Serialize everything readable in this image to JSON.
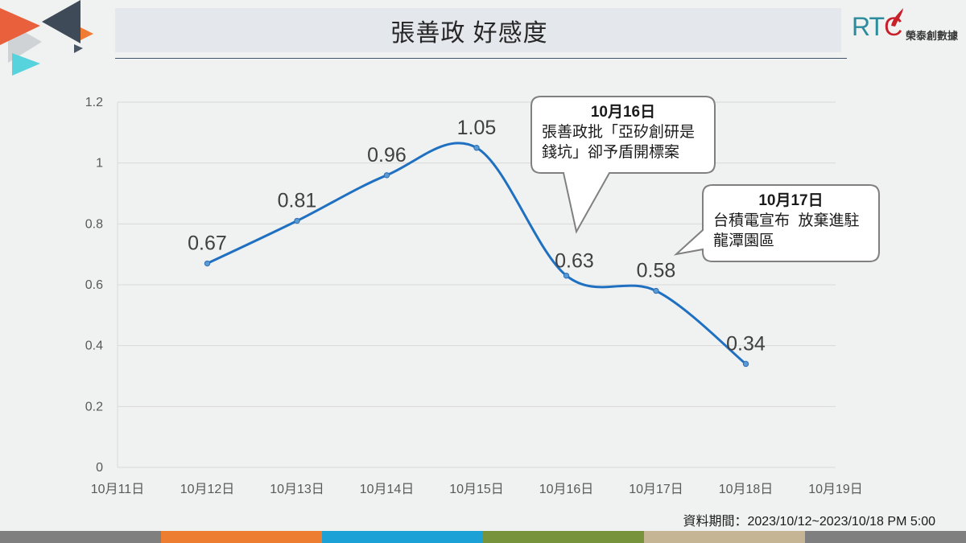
{
  "slide": {
    "footer_note": "資料期間：2023/10/12~2023/10/18 PM 5:00"
  },
  "logo": {
    "mark": "RTC",
    "company": "榮泰創數據"
  },
  "colors": {
    "background": "#f0f1f1",
    "title_bar": "#e4e7ec",
    "title_rule": "#44546a",
    "series_line": "#1f70c1",
    "marker": "#5b9bd5",
    "gridline": "#d9d9d9",
    "callout_border": "#808080",
    "logo_letters": [
      "#2a8c9c",
      "#2a8c9c",
      "#c8202b"
    ],
    "logo_flame": "#c8202b",
    "footer_bar": [
      "#7f7f7f",
      "#ed7d31",
      "#1ba1d6",
      "#77933c",
      "#c5b594",
      "#7f7f7f"
    ],
    "decor": [
      "#d0d3d6",
      "#e8613c",
      "#3f4a58",
      "#f07b32",
      "#56d3dd",
      "#4a5563"
    ]
  },
  "chart_data": {
    "type": "line",
    "title": "張善政 好感度",
    "categories": [
      "10月11日",
      "10月12日",
      "10月13日",
      "10月14日",
      "10月15日",
      "10月16日",
      "10月17日",
      "10月18日",
      "10月19日"
    ],
    "series": [
      {
        "values": [
          null,
          0.67,
          0.81,
          0.96,
          1.05,
          0.63,
          0.58,
          0.34,
          null
        ]
      }
    ],
    "ylim": [
      0,
      1.2
    ],
    "yticks": [
      "0",
      "0.2",
      "0.4",
      "0.6",
      "0.8",
      "1",
      "1.2"
    ],
    "smooth": true,
    "data_labels": true,
    "grid": "horizontal",
    "legend": "none",
    "annotations": [
      {
        "x": "10月16日",
        "title": "10月16日",
        "lines": [
          "張善政批「亞矽創研是",
          "錢坑」卻予盾開標案"
        ]
      },
      {
        "x": "10月17日",
        "title": "10月17日",
        "lines": [
          "台積電宣布  放棄進駐",
          "龍潭園區"
        ]
      }
    ]
  }
}
